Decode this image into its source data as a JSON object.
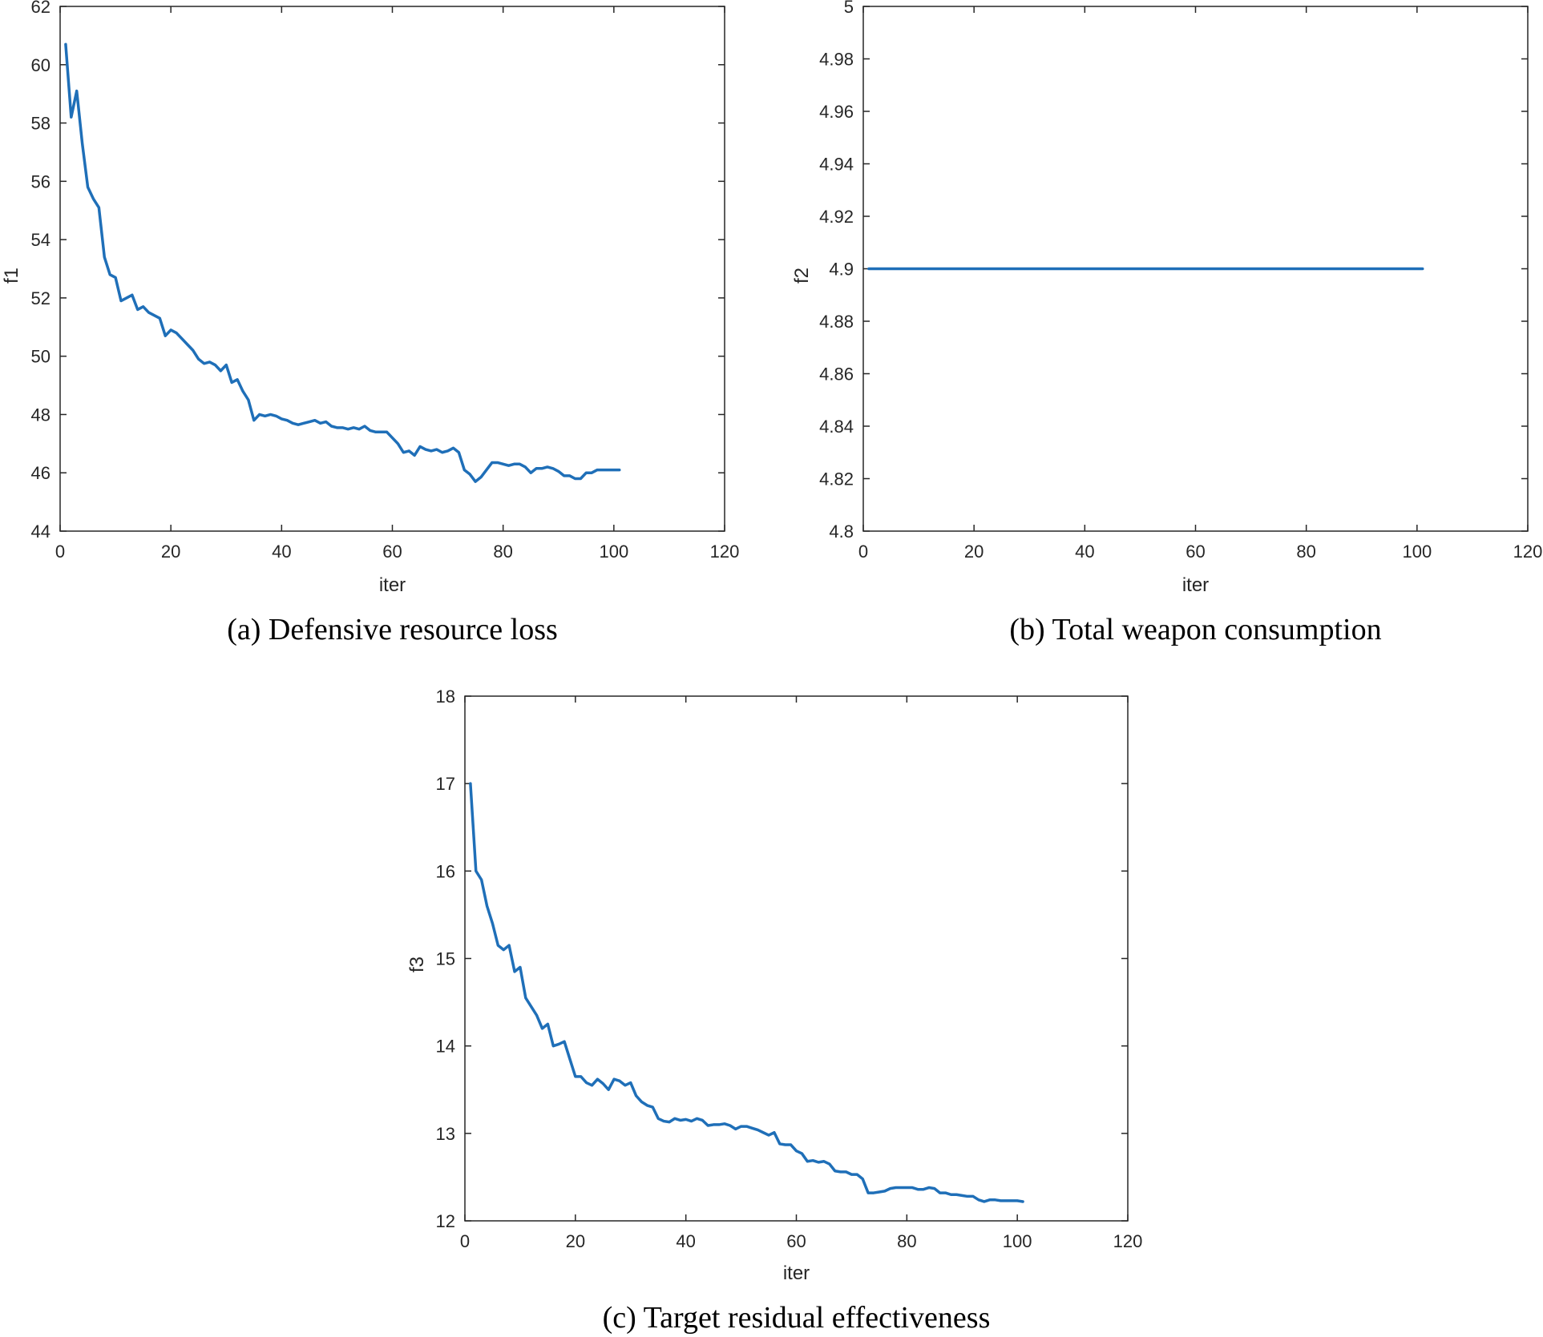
{
  "line_color": "#1f6fb8",
  "chart_data": [
    {
      "type": "line",
      "caption": "(a) Defensive resource loss",
      "xlabel": "iter",
      "ylabel": "f1",
      "xlim": [
        0,
        120
      ],
      "ylim": [
        44,
        62
      ],
      "xticks": [
        0,
        20,
        40,
        60,
        80,
        100,
        120
      ],
      "yticks": [
        44,
        46,
        48,
        50,
        52,
        54,
        56,
        58,
        60,
        62
      ],
      "ytick_labels": [
        "44",
        "46",
        "48",
        "50",
        "52",
        "54",
        "56",
        "58",
        "60",
        "62"
      ],
      "grid": false,
      "series": [
        {
          "x": [
            1,
            2,
            3,
            4,
            5,
            6,
            7,
            8,
            9,
            10,
            11,
            12,
            13,
            14,
            15,
            16,
            17,
            18,
            19,
            20,
            21,
            22,
            23,
            24,
            25,
            26,
            27,
            28,
            29,
            30,
            31,
            32,
            33,
            34,
            35,
            36,
            37,
            38,
            39,
            40,
            41,
            42,
            43,
            44,
            45,
            46,
            47,
            48,
            49,
            50,
            51,
            52,
            53,
            54,
            55,
            56,
            57,
            58,
            59,
            60,
            61,
            62,
            63,
            64,
            65,
            66,
            67,
            68,
            69,
            70,
            71,
            72,
            73,
            74,
            75,
            76,
            77,
            78,
            79,
            80,
            81,
            82,
            83,
            84,
            85,
            86,
            87,
            88,
            89,
            90,
            91,
            92,
            93,
            94,
            95,
            96,
            97,
            98,
            99,
            100,
            101
          ],
          "y": [
            60.7,
            58.2,
            59.1,
            57.3,
            55.8,
            55.4,
            55.1,
            53.4,
            52.8,
            52.7,
            51.9,
            52.0,
            52.1,
            51.6,
            51.7,
            51.5,
            51.4,
            51.3,
            50.7,
            50.9,
            50.8,
            50.6,
            50.4,
            50.2,
            49.9,
            49.75,
            49.8,
            49.7,
            49.5,
            49.7,
            49.1,
            49.2,
            48.8,
            48.5,
            47.8,
            48.0,
            47.95,
            48.0,
            47.95,
            47.85,
            47.8,
            47.7,
            47.65,
            47.7,
            47.75,
            47.8,
            47.7,
            47.75,
            47.6,
            47.55,
            47.55,
            47.5,
            47.55,
            47.5,
            47.6,
            47.45,
            47.4,
            47.4,
            47.4,
            47.2,
            47.0,
            46.7,
            46.75,
            46.6,
            46.9,
            46.8,
            46.75,
            46.8,
            46.7,
            46.75,
            46.85,
            46.7,
            46.1,
            45.95,
            45.7,
            45.85,
            46.1,
            46.35,
            46.35,
            46.3,
            46.25,
            46.3,
            46.3,
            46.2,
            46.0,
            46.15,
            46.15,
            46.2,
            46.15,
            46.05,
            45.9,
            45.9,
            45.8,
            45.8,
            46.0,
            46.0,
            46.1,
            46.1,
            46.1,
            46.1,
            46.1
          ]
        }
      ]
    },
    {
      "type": "line",
      "caption": "(b) Total weapon consumption",
      "xlabel": "iter",
      "ylabel": "f2",
      "xlim": [
        0,
        120
      ],
      "ylim": [
        4.8,
        5.0
      ],
      "xticks": [
        0,
        20,
        40,
        60,
        80,
        100,
        120
      ],
      "yticks": [
        4.8,
        4.82,
        4.84,
        4.86,
        4.88,
        4.9,
        4.92,
        4.94,
        4.96,
        4.98,
        5.0
      ],
      "ytick_labels": [
        "4.8",
        "4.82",
        "4.84",
        "4.86",
        "4.88",
        "4.9",
        "4.92",
        "4.94",
        "4.96",
        "4.98",
        "5"
      ],
      "grid": false,
      "series": [
        {
          "x": [
            1,
            101
          ],
          "y": [
            4.9,
            4.9
          ]
        }
      ]
    },
    {
      "type": "line",
      "caption": "(c) Target residual effectiveness",
      "xlabel": "iter",
      "ylabel": "f3",
      "xlim": [
        0,
        120
      ],
      "ylim": [
        12,
        18
      ],
      "xticks": [
        0,
        20,
        40,
        60,
        80,
        100,
        120
      ],
      "yticks": [
        12,
        13,
        14,
        15,
        16,
        17,
        18
      ],
      "ytick_labels": [
        "12",
        "13",
        "14",
        "15",
        "16",
        "17",
        "18"
      ],
      "grid": false,
      "series": [
        {
          "x": [
            1,
            2,
            3,
            4,
            5,
            6,
            7,
            8,
            9,
            10,
            11,
            12,
            13,
            14,
            15,
            16,
            17,
            18,
            19,
            20,
            21,
            22,
            23,
            24,
            25,
            26,
            27,
            28,
            29,
            30,
            31,
            32,
            33,
            34,
            35,
            36,
            37,
            38,
            39,
            40,
            41,
            42,
            43,
            44,
            45,
            46,
            47,
            48,
            49,
            50,
            51,
            52,
            53,
            54,
            55,
            56,
            57,
            58,
            59,
            60,
            61,
            62,
            63,
            64,
            65,
            66,
            67,
            68,
            69,
            70,
            71,
            72,
            73,
            74,
            75,
            76,
            77,
            78,
            79,
            80,
            81,
            82,
            83,
            84,
            85,
            86,
            87,
            88,
            89,
            90,
            91,
            92,
            93,
            94,
            95,
            96,
            97,
            98,
            99,
            100,
            101
          ],
          "y": [
            17.0,
            16.0,
            15.9,
            15.6,
            15.4,
            15.15,
            15.1,
            15.15,
            14.85,
            14.9,
            14.55,
            14.45,
            14.35,
            14.2,
            14.25,
            14.0,
            14.02,
            14.05,
            13.85,
            13.65,
            13.65,
            13.58,
            13.55,
            13.62,
            13.57,
            13.5,
            13.62,
            13.6,
            13.55,
            13.58,
            13.43,
            13.36,
            13.32,
            13.3,
            13.17,
            13.14,
            13.13,
            13.17,
            13.15,
            13.16,
            13.14,
            13.17,
            13.15,
            13.09,
            13.1,
            13.1,
            13.11,
            13.09,
            13.05,
            13.08,
            13.08,
            13.06,
            13.04,
            13.01,
            12.98,
            13.01,
            12.88,
            12.87,
            12.87,
            12.8,
            12.77,
            12.68,
            12.69,
            12.67,
            12.68,
            12.65,
            12.57,
            12.56,
            12.56,
            12.53,
            12.53,
            12.48,
            12.32,
            12.32,
            12.33,
            12.34,
            12.37,
            12.38,
            12.38,
            12.38,
            12.38,
            12.36,
            12.36,
            12.38,
            12.37,
            12.32,
            12.32,
            12.3,
            12.3,
            12.29,
            12.28,
            12.28,
            12.24,
            12.22,
            12.24,
            12.24,
            12.23,
            12.23,
            12.23,
            12.23,
            12.22
          ]
        }
      ]
    }
  ]
}
